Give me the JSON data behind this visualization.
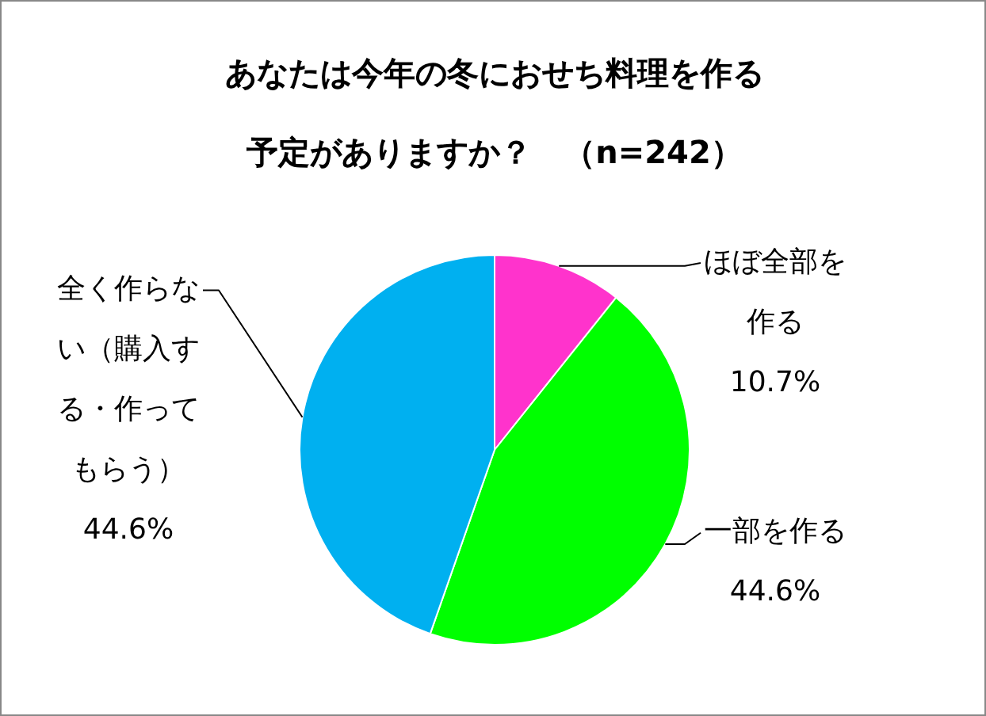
{
  "chart_data": {
    "type": "pie",
    "title": "あなたは今年の冬におせち料理を作る予定がありますか？　（n=242）",
    "categories": [
      "ほぼ全部を作る",
      "一部を作る",
      "全く作らない（購入する・作ってもらう）"
    ],
    "values": [
      10.7,
      44.6,
      44.6
    ],
    "colors": [
      "#ff33cc",
      "#00ff00",
      "#00b0f0"
    ],
    "value_labels": [
      "10.7%",
      "44.6%",
      "44.6%"
    ]
  }
}
